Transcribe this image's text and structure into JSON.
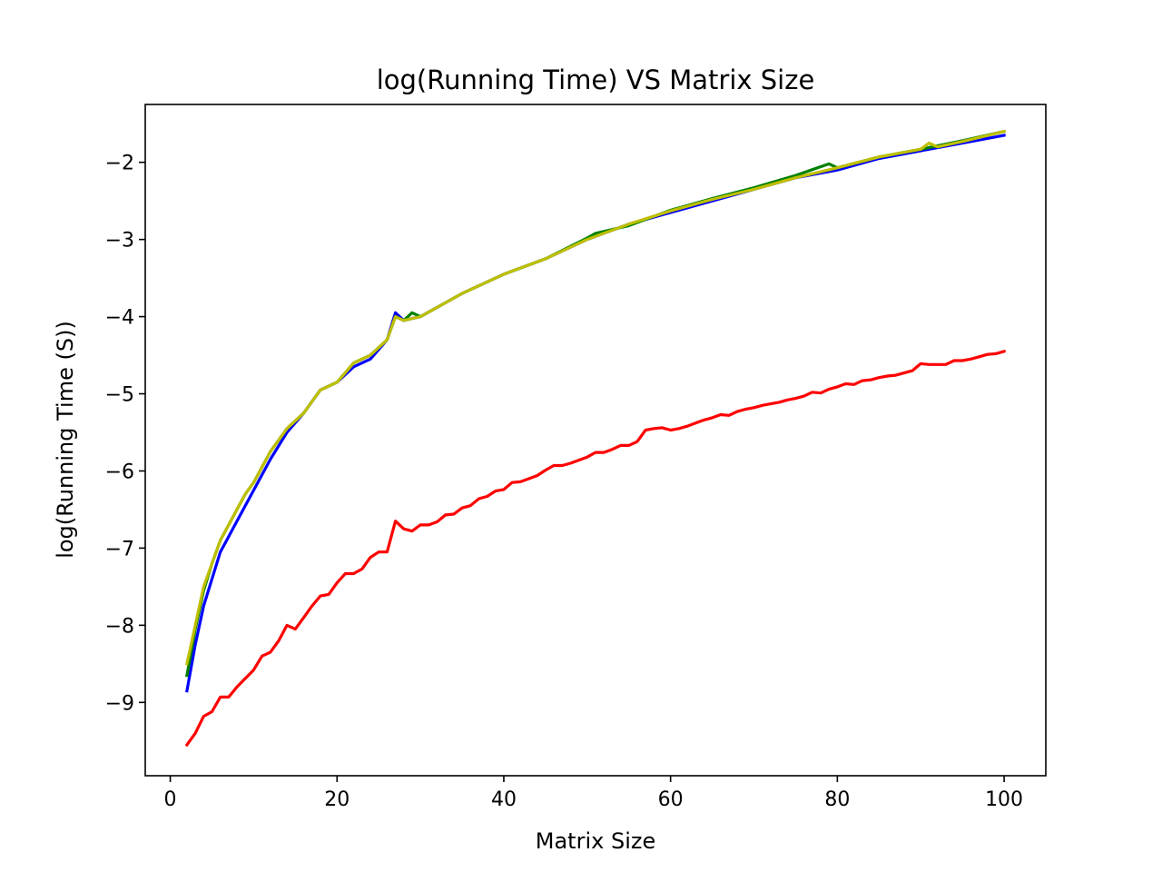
{
  "chart_data": {
    "type": "line",
    "title": "log(Running Time) VS Matrix Size",
    "xlabel": "Matrix Size",
    "ylabel": "log(Running Time (S))",
    "xlim": [
      -3.0,
      105.0
    ],
    "ylim": [
      -9.95,
      -1.25
    ],
    "x_ticks": [
      0,
      20,
      40,
      60,
      80,
      100
    ],
    "y_ticks": [
      -9,
      -8,
      -7,
      -6,
      -5,
      -4,
      -3,
      -2
    ],
    "y_tick_labels": [
      "−9",
      "−8",
      "−7",
      "−6",
      "−5",
      "−4",
      "−3",
      "−2"
    ],
    "grid": false,
    "legend": "none",
    "series": [
      {
        "color": "#0000ff",
        "x": [
          2,
          3,
          4,
          5,
          6,
          7,
          8,
          9,
          10,
          12,
          14,
          16,
          18,
          20,
          22,
          24,
          26,
          27,
          28,
          30,
          35,
          40,
          45,
          50,
          55,
          60,
          65,
          70,
          75,
          80,
          85,
          90,
          95,
          100
        ],
        "y": [
          -8.85,
          -8.25,
          -7.75,
          -7.4,
          -7.05,
          -6.85,
          -6.65,
          -6.45,
          -6.25,
          -5.85,
          -5.5,
          -5.25,
          -4.95,
          -4.85,
          -4.65,
          -4.55,
          -4.3,
          -3.95,
          -4.05,
          -4.0,
          -3.7,
          -3.45,
          -3.25,
          -3.0,
          -2.8,
          -2.65,
          -2.5,
          -2.35,
          -2.2,
          -2.1,
          -1.95,
          -1.85,
          -1.75,
          -1.65
        ]
      },
      {
        "color": "#008000",
        "x": [
          2,
          3,
          4,
          5,
          6,
          7,
          8,
          9,
          10,
          12,
          14,
          16,
          18,
          20,
          22,
          24,
          26,
          27,
          28,
          29,
          30,
          35,
          40,
          45,
          50,
          51,
          55,
          60,
          65,
          70,
          75,
          79,
          80,
          85,
          90,
          95,
          100
        ],
        "y": [
          -8.65,
          -8.05,
          -7.55,
          -7.2,
          -6.9,
          -6.7,
          -6.5,
          -6.3,
          -6.15,
          -5.75,
          -5.45,
          -5.25,
          -4.95,
          -4.85,
          -4.6,
          -4.5,
          -4.3,
          -4.0,
          -4.05,
          -3.95,
          -4.0,
          -3.7,
          -3.45,
          -3.25,
          -2.98,
          -2.92,
          -2.82,
          -2.62,
          -2.47,
          -2.33,
          -2.17,
          -2.02,
          -2.07,
          -1.93,
          -1.83,
          -1.72,
          -1.6
        ]
      },
      {
        "color": "#bfbf00",
        "x": [
          2,
          3,
          4,
          5,
          6,
          7,
          8,
          9,
          10,
          12,
          14,
          16,
          18,
          20,
          22,
          24,
          26,
          27,
          28,
          30,
          35,
          40,
          45,
          50,
          55,
          60,
          65,
          70,
          75,
          80,
          85,
          90,
          91,
          92,
          95,
          100
        ],
        "y": [
          -8.5,
          -8.0,
          -7.5,
          -7.2,
          -6.9,
          -6.7,
          -6.5,
          -6.3,
          -6.15,
          -5.75,
          -5.45,
          -5.25,
          -4.95,
          -4.85,
          -4.6,
          -4.5,
          -4.3,
          -4.0,
          -4.05,
          -4.0,
          -3.7,
          -3.45,
          -3.25,
          -3.0,
          -2.8,
          -2.63,
          -2.48,
          -2.35,
          -2.2,
          -2.07,
          -1.93,
          -1.83,
          -1.75,
          -1.8,
          -1.73,
          -1.6
        ]
      },
      {
        "color": "#ff0000",
        "x": [
          2,
          3,
          4,
          5,
          6,
          7,
          8,
          10,
          11,
          12,
          13,
          14,
          15,
          16,
          17,
          18,
          19,
          20,
          21,
          22,
          23,
          24,
          25,
          26,
          27,
          28,
          29,
          30,
          31,
          32,
          33,
          34,
          35,
          36,
          37,
          38,
          39,
          40,
          41,
          42,
          43,
          44,
          45,
          46,
          47,
          48,
          49,
          50,
          51,
          52,
          53,
          54,
          55,
          56,
          57,
          58,
          59,
          60,
          61,
          62,
          63,
          64,
          65,
          66,
          67,
          68,
          69,
          70,
          71,
          72,
          73,
          74,
          75,
          76,
          77,
          78,
          79,
          80,
          81,
          82,
          83,
          84,
          85,
          86,
          87,
          88,
          89,
          90,
          91,
          92,
          93,
          94,
          95,
          96,
          97,
          98,
          99,
          100
        ],
        "y": [
          -9.55,
          -9.4,
          -9.18,
          -9.12,
          -8.93,
          -8.93,
          -8.8,
          -8.58,
          -8.4,
          -8.35,
          -8.2,
          -8.0,
          -8.05,
          -7.9,
          -7.75,
          -7.62,
          -7.6,
          -7.45,
          -7.33,
          -7.33,
          -7.27,
          -7.12,
          -7.05,
          -7.05,
          -6.65,
          -6.75,
          -6.78,
          -6.7,
          -6.7,
          -6.66,
          -6.57,
          -6.56,
          -6.48,
          -6.45,
          -6.36,
          -6.33,
          -6.26,
          -6.24,
          -6.15,
          -6.14,
          -6.1,
          -6.06,
          -5.99,
          -5.93,
          -5.93,
          -5.9,
          -5.86,
          -5.82,
          -5.76,
          -5.76,
          -5.72,
          -5.67,
          -5.67,
          -5.62,
          -5.47,
          -5.45,
          -5.44,
          -5.47,
          -5.45,
          -5.42,
          -5.38,
          -5.34,
          -5.31,
          -5.27,
          -5.28,
          -5.23,
          -5.2,
          -5.18,
          -5.15,
          -5.13,
          -5.11,
          -5.08,
          -5.06,
          -5.03,
          -4.98,
          -4.99,
          -4.94,
          -4.91,
          -4.87,
          -4.88,
          -4.83,
          -4.82,
          -4.79,
          -4.77,
          -4.76,
          -4.73,
          -4.7,
          -4.61,
          -4.62,
          -4.62,
          -4.62,
          -4.57,
          -4.57,
          -4.55,
          -4.52,
          -4.49,
          -4.48,
          -4.45
        ]
      }
    ]
  }
}
